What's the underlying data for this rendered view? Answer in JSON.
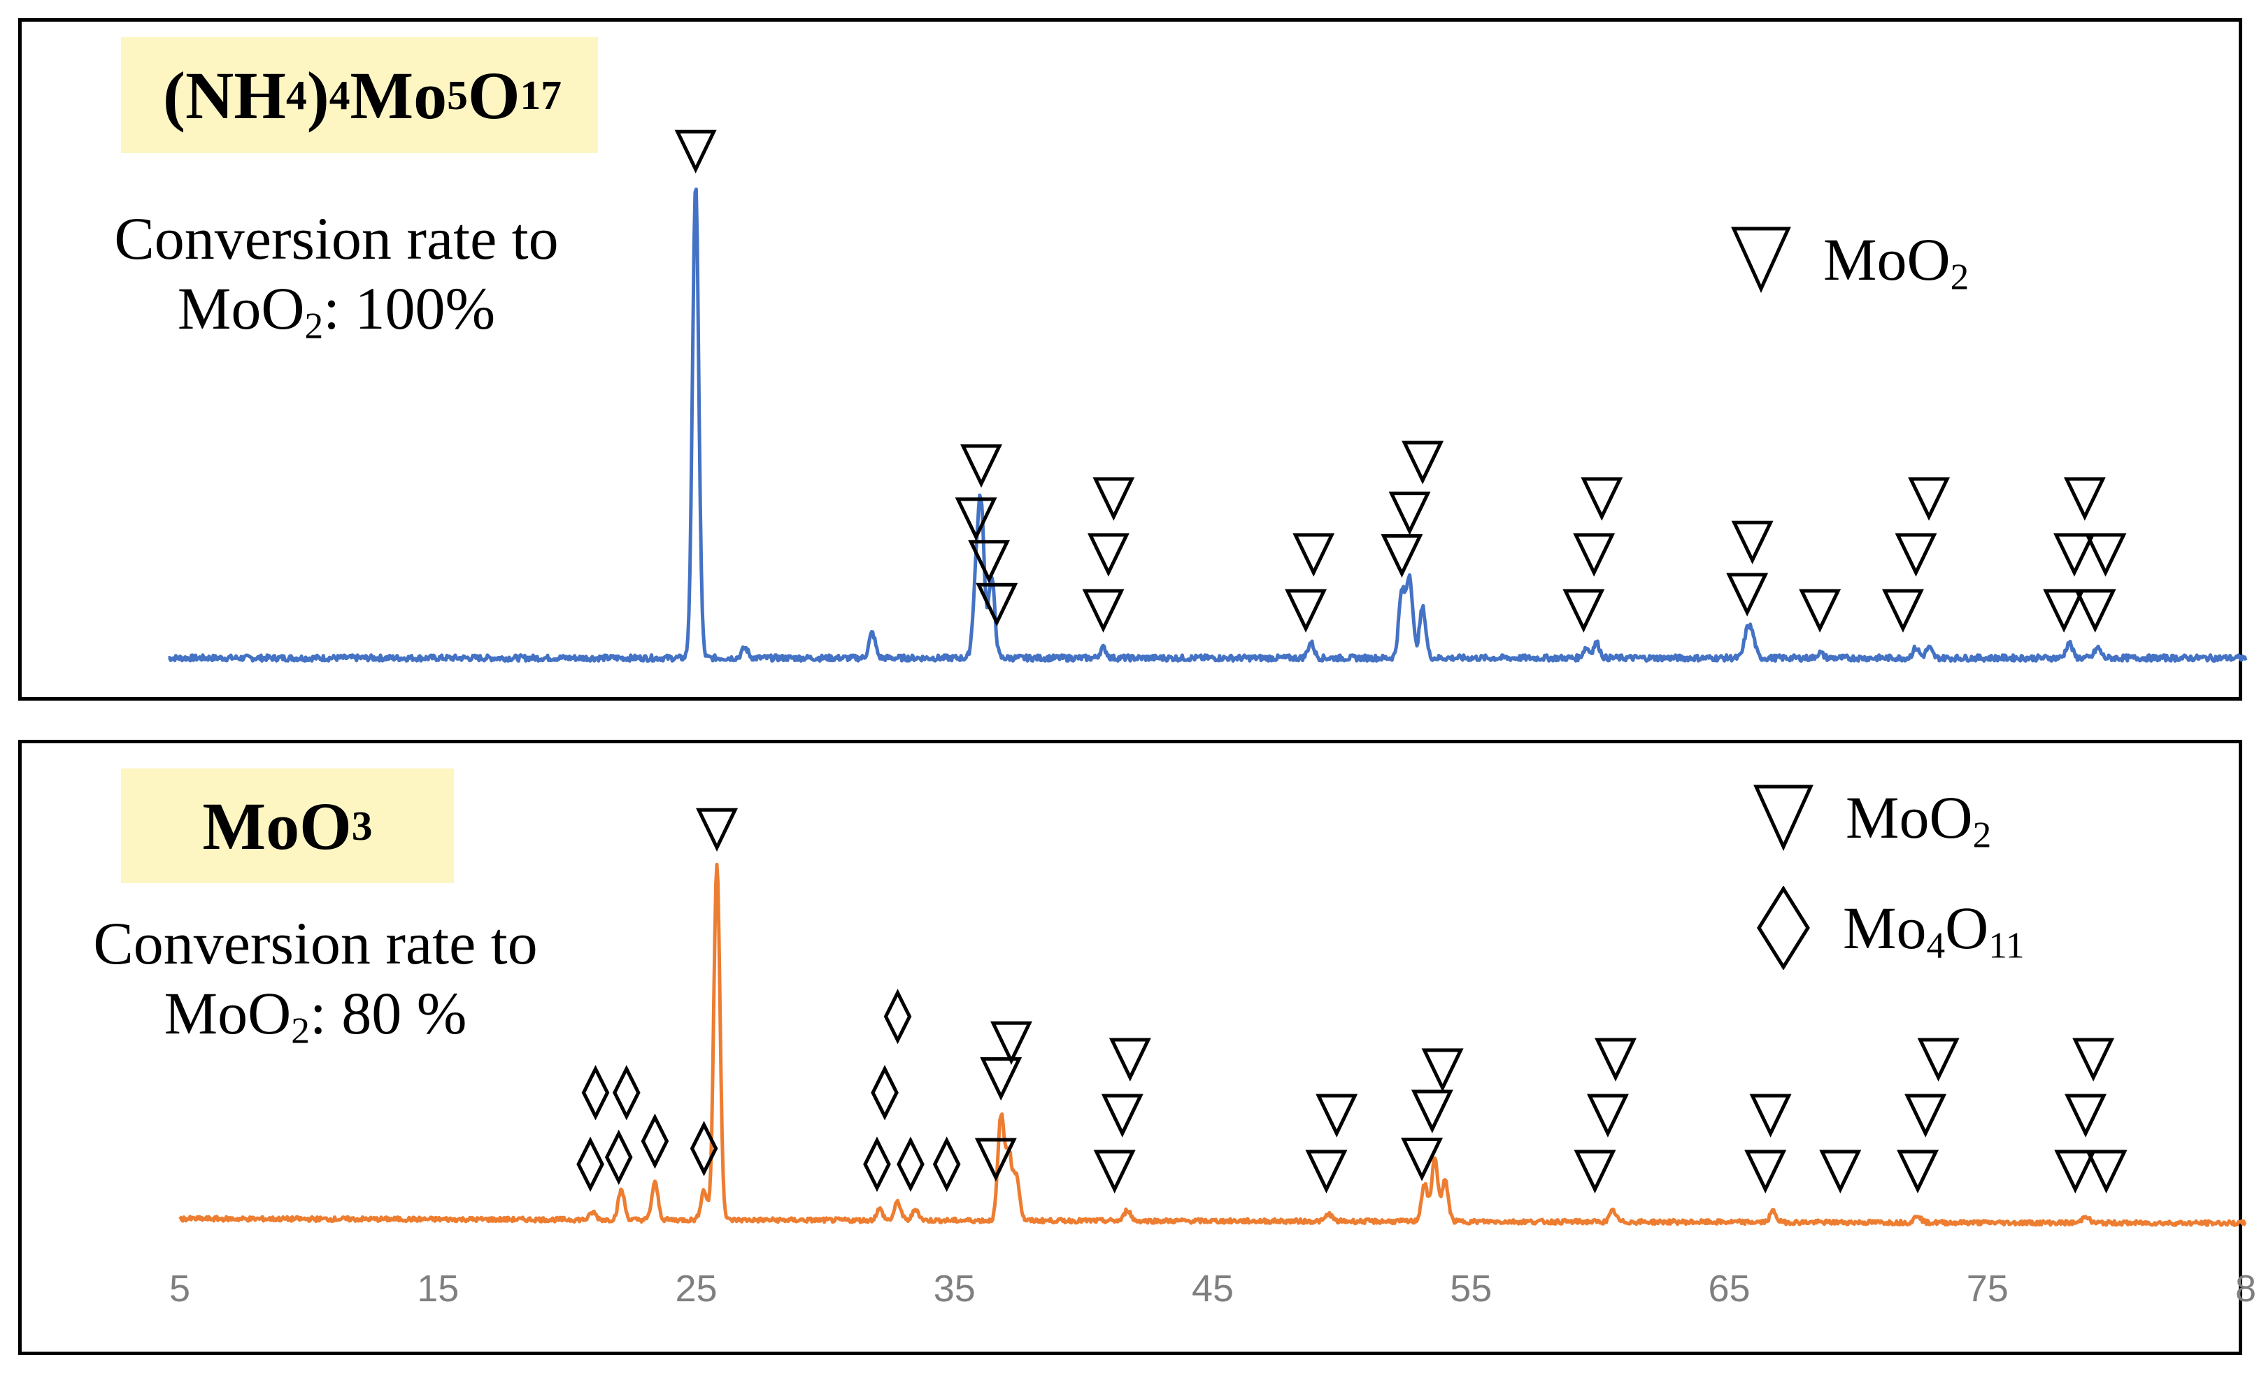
{
  "chart_data": [
    {
      "type": "line",
      "sample": {
        "main": "(NH",
        "s1": "4",
        "m2": ")",
        "s2": "4",
        "m3": "Mo",
        "s3": "5",
        "m4": "O",
        "s4": "17"
      },
      "conversion": {
        "line1": "Conversion rate to",
        "line2_pre": "MoO",
        "line2_sub": "2",
        "line2_post": ": 100%"
      },
      "legend": [
        {
          "symbol": "triangle",
          "pre": "MoO",
          "sub": "2"
        }
      ],
      "color": "#4472c4",
      "xlim": [
        5,
        85
      ],
      "series": {
        "peaks": [
          {
            "x": 25.3,
            "h": 0.94
          },
          {
            "x": 27.2,
            "h": 0.02
          },
          {
            "x": 32.1,
            "h": 0.05
          },
          {
            "x": 36.1,
            "h": 0.14
          },
          {
            "x": 36.3,
            "h": 0.28
          },
          {
            "x": 36.7,
            "h": 0.16
          },
          {
            "x": 41.0,
            "h": 0.02
          },
          {
            "x": 49.0,
            "h": 0.03
          },
          {
            "x": 52.5,
            "h": 0.13
          },
          {
            "x": 52.8,
            "h": 0.16
          },
          {
            "x": 53.3,
            "h": 0.1
          },
          {
            "x": 59.6,
            "h": 0.02
          },
          {
            "x": 60.0,
            "h": 0.03
          },
          {
            "x": 65.8,
            "h": 0.05
          },
          {
            "x": 66.0,
            "h": 0.04
          },
          {
            "x": 68.6,
            "h": 0.01
          },
          {
            "x": 72.3,
            "h": 0.02
          },
          {
            "x": 72.8,
            "h": 0.02
          },
          {
            "x": 78.2,
            "h": 0.03
          },
          {
            "x": 79.3,
            "h": 0.02
          }
        ]
      },
      "markers": {
        "MoO2": [
          25.3,
          36.3,
          36.1,
          36.6,
          36.9,
          41.0,
          41.2,
          41.4,
          48.8,
          49.1,
          52.5,
          52.8,
          53.3,
          59.5,
          59.9,
          60.2,
          65.8,
          66.0,
          68.6,
          71.8,
          72.3,
          72.8,
          78.0,
          78.4,
          78.8,
          79.2,
          79.6
        ]
      }
    },
    {
      "type": "line",
      "sample": {
        "main": "MoO",
        "s1": "3"
      },
      "conversion": {
        "line1": "Conversion rate to",
        "line2_pre": "MoO",
        "line2_sub": "2",
        "line2_post": ": 80 %"
      },
      "legend": [
        {
          "symbol": "triangle",
          "pre": "MoO",
          "sub": "2"
        },
        {
          "symbol": "diamond",
          "pre": "Mo",
          "sub": "4",
          "mid": "O",
          "sub2": "11"
        }
      ],
      "color": "#ed7d31",
      "xlim": [
        5,
        85
      ],
      "series": {
        "peaks": [
          {
            "x": 21.0,
            "h": 0.02
          },
          {
            "x": 22.1,
            "h": 0.08
          },
          {
            "x": 23.4,
            "h": 0.1
          },
          {
            "x": 25.3,
            "h": 0.08
          },
          {
            "x": 25.8,
            "h": 0.96
          },
          {
            "x": 32.1,
            "h": 0.03
          },
          {
            "x": 32.8,
            "h": 0.05
          },
          {
            "x": 33.5,
            "h": 0.03
          },
          {
            "x": 36.8,
            "h": 0.28
          },
          {
            "x": 37.1,
            "h": 0.18
          },
          {
            "x": 37.4,
            "h": 0.12
          },
          {
            "x": 41.7,
            "h": 0.03
          },
          {
            "x": 49.5,
            "h": 0.02
          },
          {
            "x": 53.2,
            "h": 0.1
          },
          {
            "x": 53.6,
            "h": 0.17
          },
          {
            "x": 54.0,
            "h": 0.11
          },
          {
            "x": 60.5,
            "h": 0.03
          },
          {
            "x": 66.7,
            "h": 0.03
          },
          {
            "x": 72.3,
            "h": 0.02
          },
          {
            "x": 78.8,
            "h": 0.02
          }
        ]
      },
      "markers": {
        "MoO2": [
          25.8,
          36.8,
          36.6,
          37.2,
          41.2,
          41.5,
          41.8,
          49.4,
          49.8,
          53.1,
          53.5,
          53.9,
          59.8,
          60.3,
          60.6,
          66.4,
          66.6,
          69.3,
          72.3,
          72.6,
          73.1,
          78.4,
          78.8,
          79.1,
          79.6
        ],
        "Mo4O11": [
          20.9,
          21.1,
          22.0,
          22.3,
          23.4,
          25.3,
          32.0,
          32.3,
          32.8,
          33.3,
          34.7
        ]
      }
    }
  ],
  "x_ticks": [
    "5",
    "15",
    "25",
    "35",
    "45",
    "55",
    "65",
    "75",
    "8"
  ]
}
